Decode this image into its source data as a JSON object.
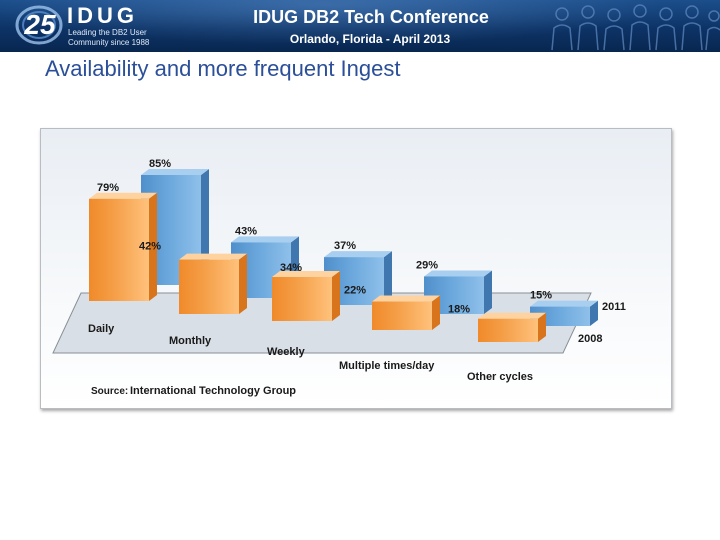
{
  "header": {
    "logo_number": "25",
    "logo_word": "IDUG",
    "logo_tagline_1": "Leading the DB2 User",
    "logo_tagline_2": "Community since 1988",
    "conference_title": "IDUG DB2 Tech Conference",
    "conference_subtitle": "Orlando, Florida  -  April 2013"
  },
  "slide": {
    "title": "Availability and more frequent Ingest"
  },
  "colors": {
    "series_2011": "#6aa7dc",
    "series_2008": "#f5a04a",
    "title": "#2b4f99"
  },
  "chart_data": {
    "type": "bar",
    "title": "",
    "categories": [
      "Daily",
      "Monthly",
      "Weekly",
      "Multiple times/day",
      "Other cycles"
    ],
    "series": [
      {
        "name": "2011",
        "values": [
          85,
          43,
          37,
          29,
          15
        ]
      },
      {
        "name": "2008",
        "values": [
          79,
          42,
          34,
          22,
          18
        ]
      }
    ],
    "value_labels": {
      "2011": [
        "85%",
        "43%",
        "37%",
        "29%",
        "15%"
      ],
      "2008": [
        "79%",
        "42%",
        "34%",
        "22%",
        "18%"
      ]
    },
    "ylim": [
      0,
      100
    ],
    "xlabel": "",
    "ylabel": "",
    "source_prefix": "Source:",
    "source_name": "International Technology Group"
  }
}
